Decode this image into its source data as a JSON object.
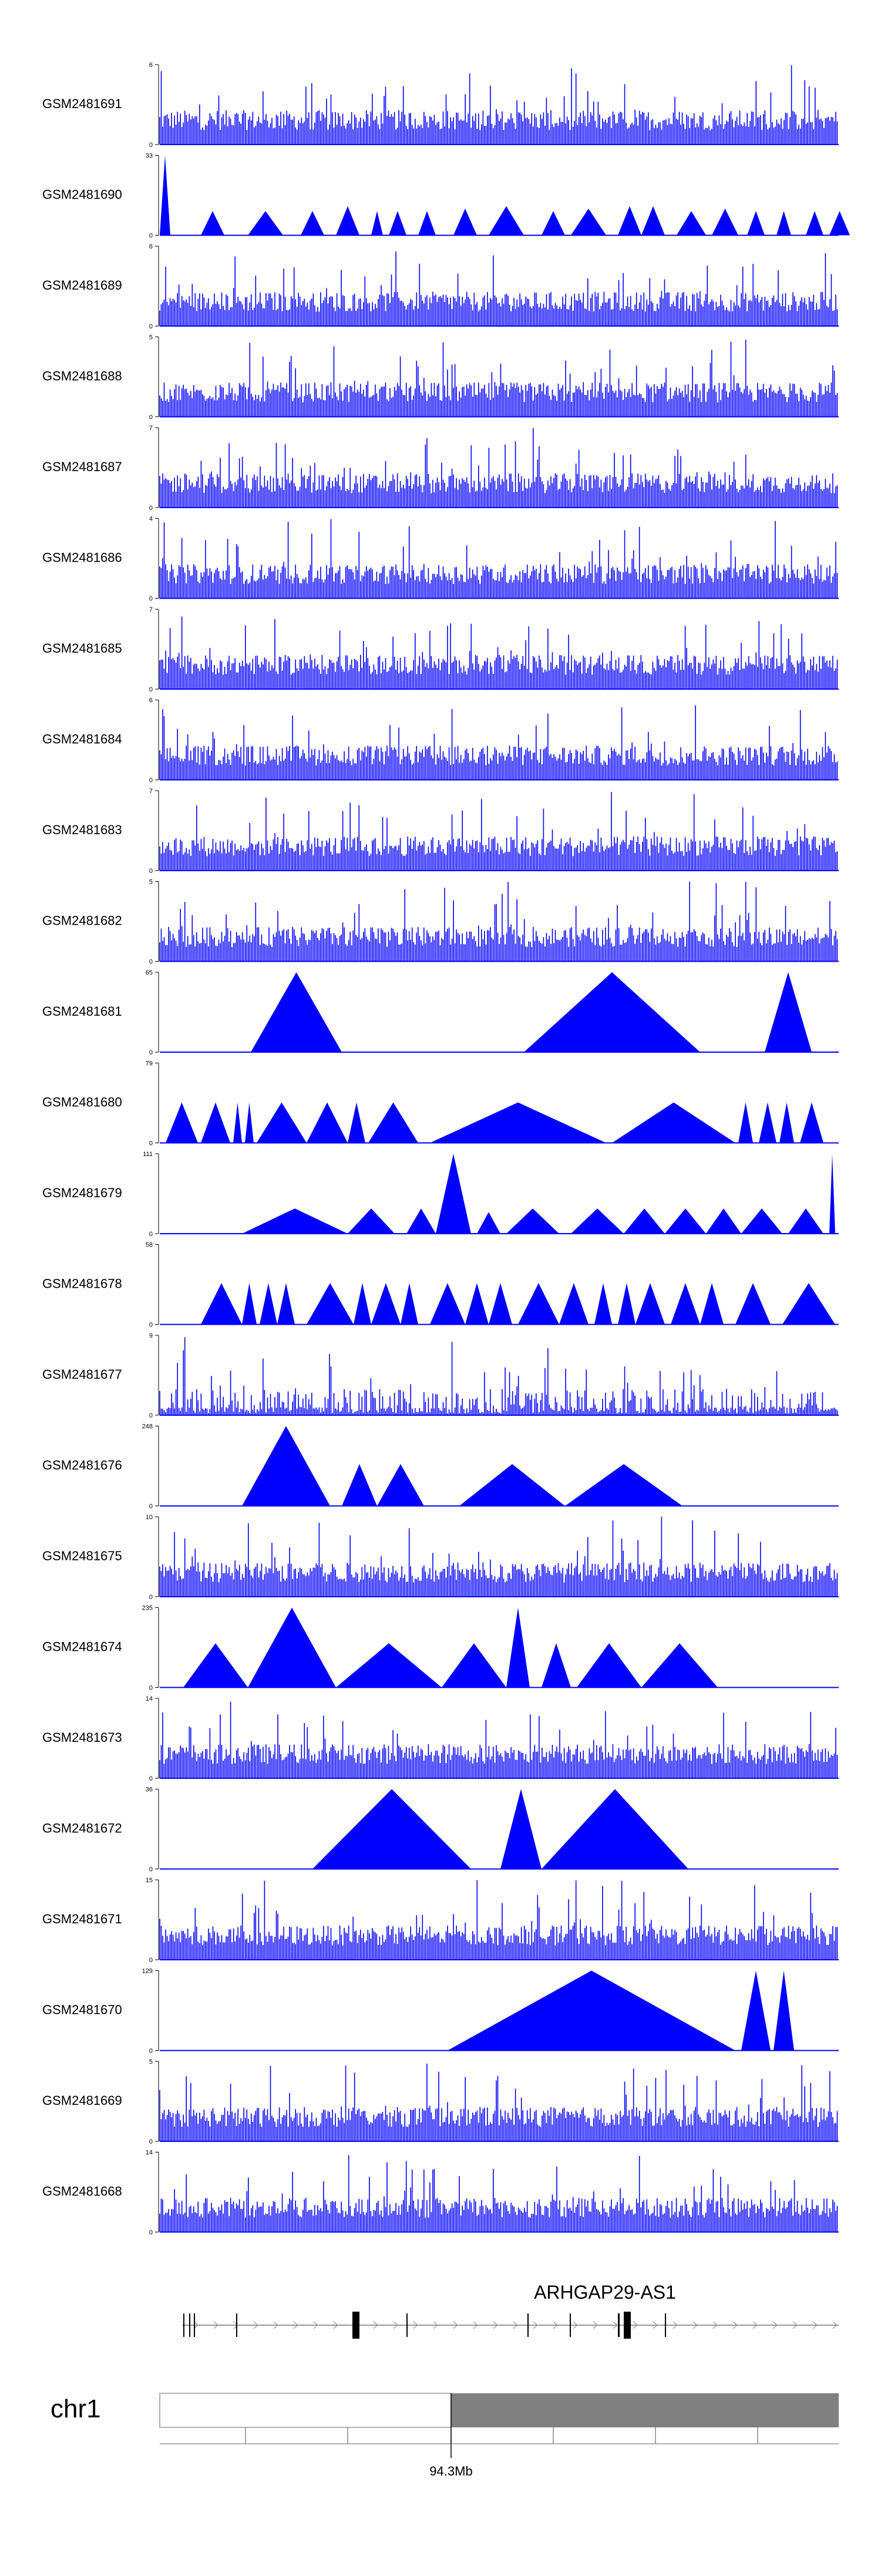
{
  "tracks": [
    {
      "name": "GSM2481691",
      "ymax": "6",
      "ymin": "0",
      "style": "spiky",
      "max": 6
    },
    {
      "name": "GSM2481690",
      "ymax": "33",
      "ymin": "0",
      "style": "tri",
      "max": 33,
      "tri": [
        [
          0,
          18,
          33
        ],
        [
          70,
          110,
          10
        ],
        [
          150,
          210,
          10
        ],
        [
          240,
          280,
          10
        ],
        [
          300,
          340,
          12
        ],
        [
          360,
          380,
          10
        ],
        [
          390,
          420,
          10
        ],
        [
          440,
          470,
          10
        ],
        [
          500,
          540,
          11
        ],
        [
          560,
          620,
          12
        ],
        [
          650,
          690,
          10
        ],
        [
          700,
          760,
          11
        ],
        [
          780,
          820,
          12
        ],
        [
          820,
          860,
          12
        ],
        [
          880,
          930,
          10
        ],
        [
          940,
          985,
          11
        ],
        [
          1000,
          1030,
          10
        ],
        [
          1050,
          1075,
          10
        ],
        [
          1100,
          1130,
          10
        ],
        [
          1140,
          1175,
          10
        ]
      ]
    },
    {
      "name": "GSM2481689",
      "ymax": "6",
      "ymin": "0",
      "style": "spiky",
      "max": 6
    },
    {
      "name": "GSM2481688",
      "ymax": "5",
      "ymin": "0",
      "style": "spiky",
      "max": 5
    },
    {
      "name": "GSM2481687",
      "ymax": "7",
      "ymin": "0",
      "style": "spiky",
      "max": 7
    },
    {
      "name": "GSM2481686",
      "ymax": "4",
      "ymin": "0",
      "style": "spiky",
      "max": 4
    },
    {
      "name": "GSM2481685",
      "ymax": "7",
      "ymin": "0",
      "style": "spiky",
      "max": 7
    },
    {
      "name": "GSM2481684",
      "ymax": "6",
      "ymin": "0",
      "style": "spiky",
      "max": 6
    },
    {
      "name": "GSM2481683",
      "ymax": "7",
      "ymin": "0",
      "style": "spiky",
      "max": 7
    },
    {
      "name": "GSM2481682",
      "ymax": "5",
      "ymin": "0",
      "style": "spiky",
      "max": 5
    },
    {
      "name": "GSM2481681",
      "ymax": "65",
      "ymin": "0",
      "style": "tri",
      "max": 65,
      "tri": [
        [
          155,
          310,
          65
        ],
        [
          310,
          620,
          0
        ],
        [
          620,
          920,
          65
        ],
        [
          920,
          1030,
          0
        ],
        [
          1030,
          1110,
          65
        ],
        [
          1110,
          1150,
          0
        ]
      ]
    },
    {
      "name": "GSM2481680",
      "ymax": "79",
      "ymin": "0",
      "style": "tri",
      "max": 79,
      "tri": [
        [
          10,
          65,
          40
        ],
        [
          70,
          120,
          40
        ],
        [
          125,
          140,
          40
        ],
        [
          145,
          160,
          40
        ],
        [
          165,
          250,
          40
        ],
        [
          250,
          320,
          40
        ],
        [
          320,
          350,
          40
        ],
        [
          355,
          440,
          40
        ],
        [
          460,
          760,
          40
        ],
        [
          770,
          980,
          40
        ],
        [
          985,
          1010,
          40
        ],
        [
          1020,
          1050,
          40
        ],
        [
          1055,
          1080,
          40
        ],
        [
          1090,
          1130,
          40
        ]
      ]
    },
    {
      "name": "GSM2481679",
      "ymax": "111",
      "ymin": "0",
      "style": "tri",
      "max": 111,
      "tri": [
        [
          140,
          320,
          35
        ],
        [
          320,
          400,
          35
        ],
        [
          420,
          470,
          35
        ],
        [
          470,
          530,
          111
        ],
        [
          540,
          580,
          30
        ],
        [
          590,
          680,
          35
        ],
        [
          700,
          790,
          35
        ],
        [
          790,
          860,
          35
        ],
        [
          860,
          930,
          35
        ],
        [
          930,
          990,
          35
        ],
        [
          990,
          1060,
          35
        ],
        [
          1070,
          1130,
          35
        ],
        [
          1140,
          1150,
          111
        ]
      ]
    },
    {
      "name": "GSM2481678",
      "ymax": "58",
      "ymin": "0",
      "style": "tri",
      "max": 58,
      "tri": [
        [
          70,
          140,
          30
        ],
        [
          140,
          165,
          30
        ],
        [
          170,
          200,
          30
        ],
        [
          200,
          230,
          30
        ],
        [
          250,
          330,
          30
        ],
        [
          330,
          360,
          30
        ],
        [
          360,
          410,
          30
        ],
        [
          410,
          440,
          30
        ],
        [
          460,
          520,
          30
        ],
        [
          520,
          560,
          30
        ],
        [
          560,
          600,
          30
        ],
        [
          610,
          680,
          30
        ],
        [
          680,
          730,
          30
        ],
        [
          740,
          770,
          30
        ],
        [
          780,
          810,
          30
        ],
        [
          810,
          860,
          30
        ],
        [
          870,
          920,
          30
        ],
        [
          920,
          960,
          30
        ],
        [
          980,
          1040,
          30
        ],
        [
          1060,
          1150,
          30
        ]
      ]
    },
    {
      "name": "GSM2481677",
      "ymax": "9",
      "ymin": "0",
      "style": "sparse",
      "max": 9
    },
    {
      "name": "GSM2481676",
      "ymax": "248",
      "ymin": "0",
      "style": "tri",
      "max": 248,
      "tri": [
        [
          140,
          290,
          248
        ],
        [
          310,
          370,
          130
        ],
        [
          370,
          450,
          130
        ],
        [
          510,
          690,
          130
        ],
        [
          690,
          890,
          130
        ]
      ]
    },
    {
      "name": "GSM2481675",
      "ymax": "10",
      "ymin": "0",
      "style": "spiky",
      "max": 10
    },
    {
      "name": "GSM2481674",
      "ymax": "235",
      "ymin": "0",
      "style": "tri",
      "max": 235,
      "tri": [
        [
          40,
          150,
          130
        ],
        [
          150,
          300,
          235
        ],
        [
          300,
          480,
          130
        ],
        [
          480,
          590,
          130
        ],
        [
          590,
          630,
          235
        ],
        [
          650,
          700,
          130
        ],
        [
          710,
          820,
          130
        ],
        [
          820,
          950,
          130
        ]
      ]
    },
    {
      "name": "GSM2481673",
      "ymax": "14",
      "ymin": "0",
      "style": "spiky",
      "max": 14
    },
    {
      "name": "GSM2481672",
      "ymax": "36",
      "ymin": "0",
      "style": "tri",
      "max": 36,
      "tri": [
        [
          260,
          530,
          36
        ],
        [
          530,
          580,
          0
        ],
        [
          580,
          650,
          36
        ],
        [
          650,
          900,
          36
        ]
      ]
    },
    {
      "name": "GSM2481671",
      "ymax": "15",
      "ymin": "0",
      "style": "spiky",
      "max": 15
    },
    {
      "name": "GSM2481670",
      "ymax": "129",
      "ymin": "0",
      "style": "tri",
      "max": 129,
      "tri": [
        [
          490,
          980,
          129
        ],
        [
          990,
          1040,
          129
        ],
        [
          1045,
          1080,
          129
        ]
      ]
    },
    {
      "name": "GSM2481669",
      "ymax": "5",
      "ymin": "0",
      "style": "spiky",
      "max": 5
    },
    {
      "name": "GSM2481668",
      "ymax": "14",
      "ymin": "0",
      "style": "spiky",
      "max": 14
    }
  ],
  "gene": {
    "name": "ARHGAP29-AS1"
  },
  "ideogram": {
    "chrom": "chr1",
    "position_label": "94.3Mb"
  },
  "colors": {
    "signal": "#0000ff",
    "axis": "#000000",
    "ideogram_fill": "#808080",
    "ideogram_empty": "#ffffff"
  }
}
